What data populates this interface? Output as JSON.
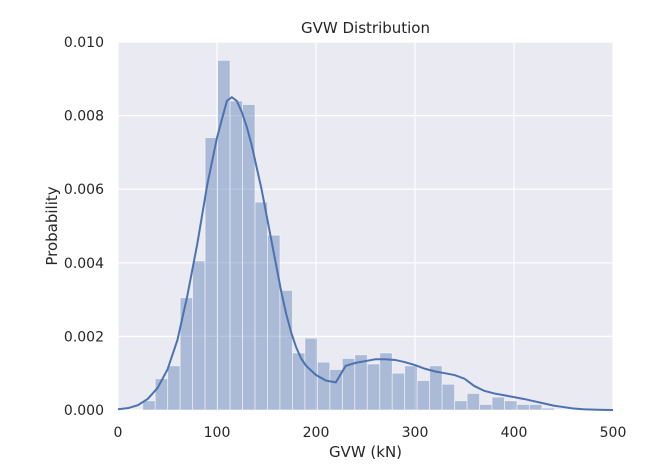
{
  "chart_data": {
    "type": "bar",
    "title": "GVW Distribution",
    "xlabel": "GVW (kN)",
    "ylabel": "Probability",
    "xlim": [
      0,
      500
    ],
    "ylim": [
      0,
      0.01
    ],
    "xticks": [
      0,
      100,
      200,
      300,
      400,
      500
    ],
    "xtick_labels": [
      "0",
      "100",
      "200",
      "300",
      "400",
      "500"
    ],
    "yticks": [
      0,
      0.002,
      0.004,
      0.006,
      0.008,
      0.01
    ],
    "ytick_labels": [
      "0.000",
      "0.002",
      "0.004",
      "0.006",
      "0.008",
      "0.010"
    ],
    "grid": true,
    "colors": {
      "background": "#EAEAF2",
      "grid": "#FFFFFF",
      "bar_fill": "#4C72B0",
      "bar_opacity": 0.4,
      "kde_line": "#4C72B0"
    },
    "histogram": {
      "bin_edges": [
        25,
        37.6,
        50.2,
        62.8,
        75.4,
        88,
        100.6,
        113.2,
        125.8,
        138.4,
        151,
        163.6,
        176.2,
        188.8,
        201.4,
        214,
        226.6,
        239.2,
        251.8,
        264.4,
        277,
        289.6,
        302.2,
        314.8,
        327.4,
        340,
        352.6,
        365.2,
        377.8,
        390.4,
        403,
        415.6,
        428.2,
        440.8,
        453.4
      ],
      "values": [
        0.00025,
        0.00085,
        0.0012,
        0.00305,
        0.00405,
        0.0074,
        0.0095,
        0.0084,
        0.0083,
        0.00565,
        0.00475,
        0.00325,
        0.00155,
        0.00195,
        0.0013,
        0.0011,
        0.0014,
        0.0015,
        0.00125,
        0.00155,
        0.001,
        0.0012,
        0.0008,
        0.0012,
        0.0007,
        0.00025,
        0.00045,
        0.00015,
        0.00035,
        0.00025,
        0.00015,
        0.00015,
        5e-05,
        0.0
      ]
    },
    "kde": {
      "x": [
        0,
        10,
        20,
        30,
        40,
        50,
        60,
        70,
        80,
        90,
        100,
        105,
        110,
        115,
        120,
        125,
        130,
        135,
        140,
        145,
        150,
        155,
        160,
        165,
        170,
        175,
        180,
        185,
        190,
        200,
        210,
        220,
        230,
        240,
        250,
        260,
        270,
        280,
        290,
        300,
        310,
        320,
        330,
        340,
        350,
        360,
        370,
        380,
        390,
        400,
        410,
        420,
        430,
        440,
        450,
        460,
        470,
        480,
        490,
        500
      ],
      "y": [
        2e-05,
        5e-05,
        0.00013,
        0.0003,
        0.0006,
        0.0011,
        0.0019,
        0.0031,
        0.0045,
        0.0061,
        0.0074,
        0.0079,
        0.0084,
        0.0085,
        0.0084,
        0.0081,
        0.0077,
        0.0072,
        0.0066,
        0.006,
        0.0053,
        0.0046,
        0.0039,
        0.0032,
        0.0026,
        0.0021,
        0.0017,
        0.0014,
        0.0012,
        0.00095,
        0.0008,
        0.00075,
        0.0012,
        0.00128,
        0.00133,
        0.00138,
        0.00138,
        0.00136,
        0.0013,
        0.00122,
        0.00112,
        0.00105,
        0.001,
        0.00095,
        0.00085,
        0.00065,
        0.00052,
        0.00045,
        0.0004,
        0.00035,
        0.0003,
        0.00024,
        0.00018,
        0.00012,
        8e-05,
        4e-05,
        2e-05,
        1e-05,
        5e-06,
        0.0
      ]
    }
  }
}
